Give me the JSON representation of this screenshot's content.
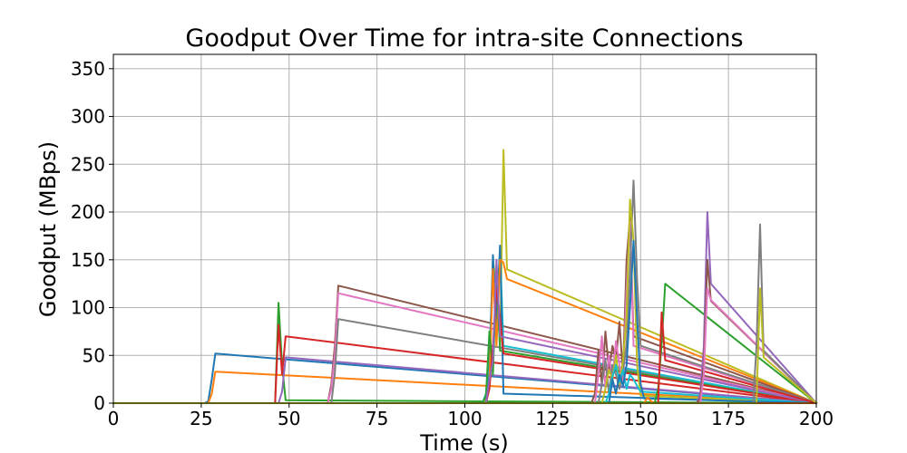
{
  "chart_data": {
    "type": "line",
    "title": "Goodput Over Time for intra-site Connections",
    "xlabel": "Time (s)",
    "ylabel": "Goodput (MBps)",
    "xlim": [
      0,
      200
    ],
    "ylim": [
      0,
      365
    ],
    "xticks": [
      0,
      25,
      50,
      75,
      100,
      125,
      150,
      175,
      200
    ],
    "yticks": [
      0,
      50,
      100,
      150,
      200,
      250,
      300,
      350
    ],
    "grid": true,
    "colors": [
      "#1f77b4",
      "#ff7f0e",
      "#2ca02c",
      "#d62728",
      "#9467bd",
      "#8c564b",
      "#e377c2",
      "#7f7f7f",
      "#bcbd22",
      "#17becf"
    ],
    "series": [
      {
        "x": [
          0,
          26,
          27,
          28,
          29,
          200
        ],
        "y": [
          0,
          0,
          2,
          25,
          52,
          0
        ]
      },
      {
        "x": [
          0,
          27,
          28,
          29,
          200
        ],
        "y": [
          0,
          0,
          10,
          33,
          0
        ]
      },
      {
        "x": [
          0,
          46,
          47,
          48,
          49,
          200
        ],
        "y": [
          0,
          0,
          105,
          40,
          3,
          0
        ]
      },
      {
        "x": [
          0,
          46,
          47,
          48,
          49,
          200
        ],
        "y": [
          0,
          0,
          82,
          30,
          70,
          0
        ]
      },
      {
        "x": [
          0,
          47,
          48,
          49,
          200
        ],
        "y": [
          0,
          0,
          12,
          48,
          0
        ]
      },
      {
        "x": [
          0,
          61,
          62,
          63,
          64,
          200
        ],
        "y": [
          0,
          0,
          20,
          60,
          123,
          0
        ]
      },
      {
        "x": [
          0,
          61,
          62,
          63,
          64,
          200
        ],
        "y": [
          0,
          0,
          15,
          50,
          115,
          0
        ]
      },
      {
        "x": [
          0,
          62,
          63,
          64,
          200
        ],
        "y": [
          0,
          0,
          30,
          88,
          0
        ]
      },
      {
        "x": [
          0,
          105,
          106,
          107,
          108,
          109,
          110,
          111,
          112,
          200
        ],
        "y": [
          0,
          0,
          5,
          40,
          150,
          120,
          60,
          265,
          140,
          0
        ]
      },
      {
        "x": [
          0,
          105,
          106,
          107,
          108,
          109,
          110,
          111,
          200
        ],
        "y": [
          0,
          0,
          10,
          55,
          140,
          90,
          160,
          60,
          0
        ]
      },
      {
        "x": [
          0,
          106,
          107,
          108,
          109,
          110,
          111,
          200
        ],
        "y": [
          0,
          0,
          30,
          155,
          80,
          165,
          10,
          0
        ]
      },
      {
        "x": [
          0,
          106,
          107,
          108,
          109,
          110,
          111,
          112,
          200
        ],
        "y": [
          0,
          0,
          20,
          140,
          60,
          150,
          147,
          130,
          0
        ]
      },
      {
        "x": [
          0,
          105,
          106,
          107,
          108,
          109,
          110,
          200
        ],
        "y": [
          0,
          0,
          8,
          75,
          30,
          140,
          55,
          0
        ]
      },
      {
        "x": [
          0,
          106,
          107,
          108,
          109,
          110,
          111,
          200
        ],
        "y": [
          0,
          0,
          15,
          60,
          120,
          90,
          52,
          0
        ]
      },
      {
        "x": [
          0,
          106,
          107,
          108,
          109,
          110,
          200
        ],
        "y": [
          0,
          0,
          25,
          45,
          150,
          70,
          0
        ]
      },
      {
        "x": [
          0,
          136,
          137,
          138,
          139,
          140,
          141,
          142,
          143,
          144,
          145,
          146,
          147,
          148,
          200
        ],
        "y": [
          0,
          0,
          10,
          55,
          20,
          75,
          35,
          60,
          45,
          85,
          30,
          150,
          195,
          70,
          0
        ]
      },
      {
        "x": [
          0,
          137,
          138,
          139,
          140,
          141,
          142,
          143,
          144,
          145,
          146,
          147,
          148,
          200
        ],
        "y": [
          0,
          0,
          30,
          70,
          15,
          50,
          25,
          65,
          40,
          20,
          120,
          190,
          60,
          0
        ]
      },
      {
        "x": [
          0,
          138,
          139,
          140,
          141,
          142,
          143,
          144,
          145,
          146,
          147,
          148,
          149,
          150,
          200
        ],
        "y": [
          0,
          0,
          20,
          45,
          10,
          40,
          30,
          15,
          35,
          60,
          140,
          233,
          130,
          60,
          0
        ]
      },
      {
        "x": [
          0,
          139,
          140,
          141,
          142,
          143,
          144,
          145,
          146,
          147,
          148,
          149,
          150,
          200
        ],
        "y": [
          0,
          0,
          15,
          35,
          25,
          50,
          20,
          45,
          90,
          213,
          170,
          40,
          8,
          0
        ]
      },
      {
        "x": [
          0,
          140,
          141,
          142,
          143,
          144,
          145,
          146,
          147,
          148,
          149,
          150,
          200
        ],
        "y": [
          0,
          0,
          10,
          28,
          40,
          22,
          35,
          15,
          30,
          25,
          18,
          12,
          0
        ]
      },
      {
        "x": [
          0,
          141,
          142,
          143,
          144,
          145,
          146,
          147,
          148,
          149,
          150,
          151,
          200
        ],
        "y": [
          0,
          0,
          25,
          10,
          30,
          18,
          40,
          100,
          170,
          90,
          20,
          5,
          0
        ]
      },
      {
        "x": [
          0,
          151,
          152,
          153,
          154,
          200
        ],
        "y": [
          0,
          0,
          6,
          2,
          0,
          0
        ]
      },
      {
        "x": [
          0,
          154,
          155,
          156,
          157,
          200
        ],
        "y": [
          0,
          0,
          15,
          62,
          125,
          0
        ]
      },
      {
        "x": [
          0,
          155,
          156,
          157,
          200
        ],
        "y": [
          0,
          0,
          95,
          45,
          0
        ]
      },
      {
        "x": [
          0,
          166,
          167,
          168,
          169,
          170,
          200
        ],
        "y": [
          0,
          0,
          10,
          60,
          200,
          125,
          0
        ]
      },
      {
        "x": [
          0,
          166,
          167,
          168,
          169,
          170,
          200
        ],
        "y": [
          0,
          0,
          5,
          40,
          150,
          107,
          0
        ]
      },
      {
        "x": [
          0,
          167,
          168,
          169,
          170,
          200
        ],
        "y": [
          0,
          0,
          30,
          120,
          108,
          0
        ]
      },
      {
        "x": [
          0,
          182,
          183,
          184,
          185,
          200
        ],
        "y": [
          0,
          0,
          60,
          187,
          55,
          0
        ]
      },
      {
        "x": [
          0,
          183,
          184,
          185,
          200
        ],
        "y": [
          0,
          0,
          120,
          48,
          0
        ]
      }
    ]
  }
}
